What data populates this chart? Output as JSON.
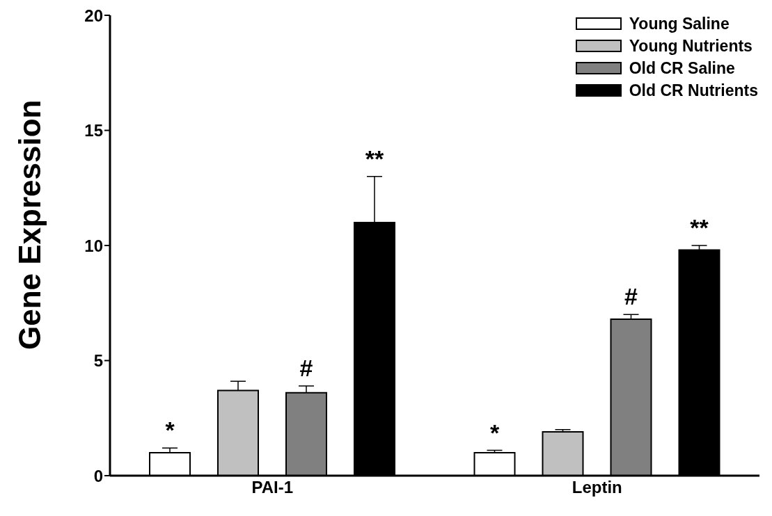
{
  "chart_data": {
    "type": "bar",
    "ylabel": "Gene Expression",
    "categories": [
      "PAI-1",
      "Leptin"
    ],
    "series": [
      {
        "name": "Young Saline",
        "color": "#ffffff",
        "values": [
          1.0,
          1.0
        ],
        "errors": [
          [
            1.0,
            1.2
          ],
          [
            1.0,
            1.1
          ]
        ],
        "value_labels": [
          "*",
          "*"
        ]
      },
      {
        "name": "Young Nutrients",
        "color": "#c0c0c0",
        "values": [
          3.7,
          1.9
        ],
        "errors": [
          [
            3.7,
            4.1
          ],
          [
            1.9,
            2.0
          ]
        ]
      },
      {
        "name": "Old CR Saline",
        "color": "#808080",
        "values": [
          3.6,
          6.8
        ],
        "errors": [
          [
            3.6,
            3.9
          ],
          [
            6.8,
            7.0
          ]
        ],
        "value_labels": [
          "#",
          "#"
        ]
      },
      {
        "name": "Old CR Nutrients",
        "color": "#000000",
        "values": [
          11.0,
          9.8
        ],
        "errors": [
          [
            11.0,
            13.0
          ],
          [
            9.8,
            10.0
          ]
        ],
        "value_labels": [
          "**",
          "**"
        ]
      }
    ],
    "ylim": [
      0,
      20
    ],
    "yticks": [
      0,
      5,
      10,
      15,
      20
    ],
    "legend": "top right"
  }
}
